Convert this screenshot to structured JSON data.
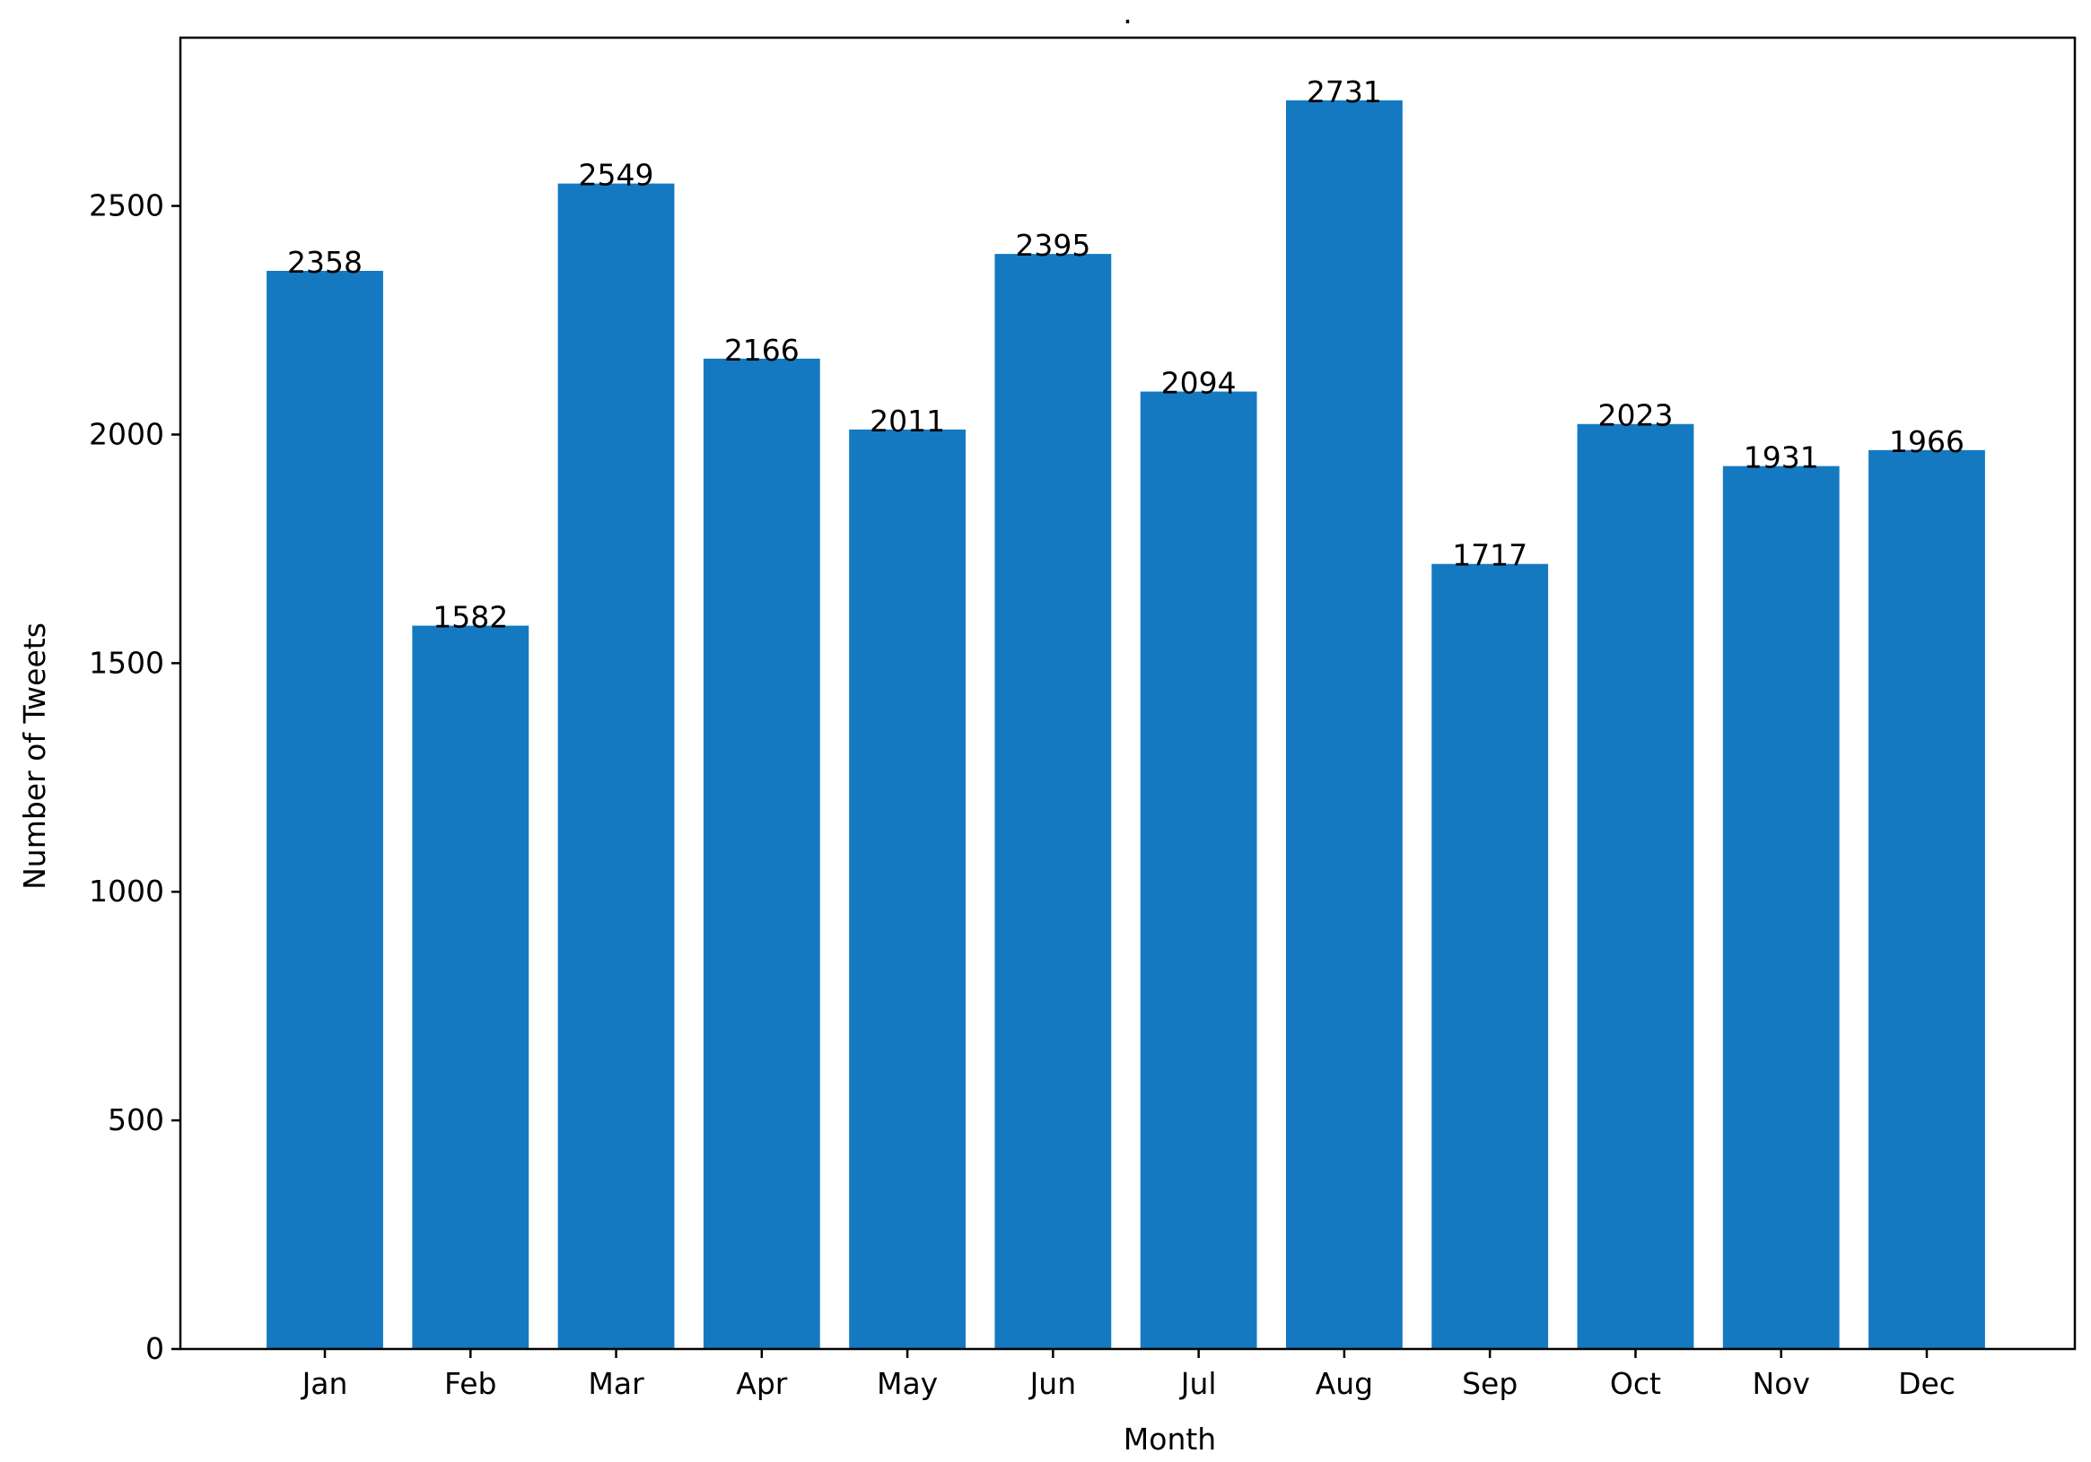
{
  "chart_data": {
    "type": "bar",
    "title": ".",
    "xlabel": "Month",
    "ylabel": "Number of Tweets",
    "categories": [
      "Jan",
      "Feb",
      "Mar",
      "Apr",
      "May",
      "Jun",
      "Jul",
      "Aug",
      "Sep",
      "Oct",
      "Nov",
      "Dec"
    ],
    "values": [
      2358,
      1582,
      2549,
      2166,
      2011,
      2395,
      2094,
      2731,
      1717,
      2023,
      1931,
      1966
    ],
    "ylim": [
      0,
      2868
    ],
    "yticks": [
      0,
      500,
      1000,
      1500,
      2000,
      2500
    ],
    "bar_color": "#1479c1",
    "data_labels": true,
    "grid": false,
    "legend": "none"
  }
}
